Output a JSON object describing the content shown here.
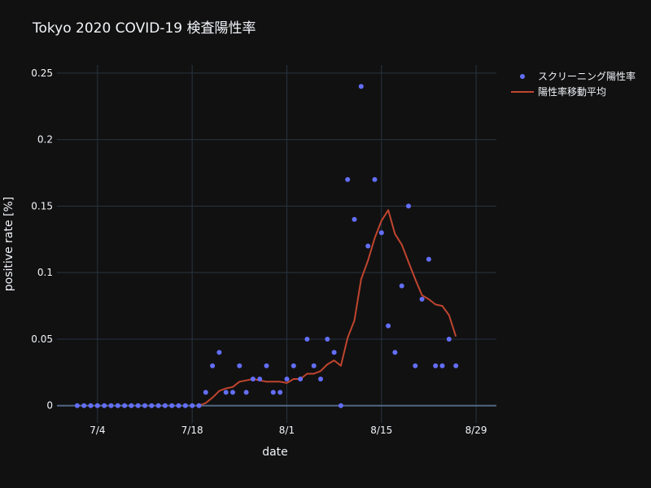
{
  "chart_data": {
    "type": "scatter+line",
    "title": "Tokyo 2020 COVID-19 検査陽性率",
    "xlabel": "date",
    "ylabel": "positive rate [%]",
    "x_ticks": [
      "7/4",
      "7/18",
      "8/1",
      "8/15",
      "8/29"
    ],
    "y_ticks": [
      "0",
      "0.05",
      "0.1",
      "0.15",
      "0.2",
      "0.25"
    ],
    "x_range": [
      "2020-06-28",
      "2020-09-01"
    ],
    "y_range": [
      -0.013,
      0.256
    ],
    "grid": true,
    "legend_position": "top-right",
    "series": [
      {
        "name": "スクリーニング陽性率",
        "mode": "markers",
        "color": "#636efa",
        "x": [
          "2020-07-01",
          "2020-07-02",
          "2020-07-03",
          "2020-07-04",
          "2020-07-05",
          "2020-07-06",
          "2020-07-07",
          "2020-07-08",
          "2020-07-09",
          "2020-07-10",
          "2020-07-11",
          "2020-07-12",
          "2020-07-13",
          "2020-07-14",
          "2020-07-15",
          "2020-07-16",
          "2020-07-17",
          "2020-07-18",
          "2020-07-19",
          "2020-07-20",
          "2020-07-21",
          "2020-07-22",
          "2020-07-23",
          "2020-07-24",
          "2020-07-25",
          "2020-07-26",
          "2020-07-27",
          "2020-07-28",
          "2020-07-29",
          "2020-07-30",
          "2020-07-31",
          "2020-08-01",
          "2020-08-02",
          "2020-08-03",
          "2020-08-04",
          "2020-08-05",
          "2020-08-06",
          "2020-08-07",
          "2020-08-08",
          "2020-08-09",
          "2020-08-10",
          "2020-08-11",
          "2020-08-12",
          "2020-08-13",
          "2020-08-14",
          "2020-08-15",
          "2020-08-16",
          "2020-08-17",
          "2020-08-18",
          "2020-08-19",
          "2020-08-20",
          "2020-08-21",
          "2020-08-22",
          "2020-08-23",
          "2020-08-24",
          "2020-08-25",
          "2020-08-26"
        ],
        "y": [
          0,
          0,
          0,
          0,
          0,
          0,
          0,
          0,
          0,
          0,
          0,
          0,
          0,
          0,
          0,
          0,
          0,
          0,
          0,
          0.01,
          0.03,
          0.04,
          0.01,
          0.01,
          0.03,
          0.01,
          0.02,
          0.02,
          0.03,
          0.01,
          0.01,
          0.02,
          0.03,
          0.02,
          0.05,
          0.03,
          0.02,
          0.05,
          0.04,
          0,
          0.17,
          0.14,
          0.24,
          0.12,
          0.17,
          0.13,
          0.06,
          0.04,
          0.09,
          0.15,
          0.03,
          0.08,
          0.11,
          0.03,
          0.03,
          0.05,
          0.03
        ]
      },
      {
        "name": "陽性率移動平均",
        "mode": "lines",
        "color": "#c0452f",
        "x": [
          "2020-07-19",
          "2020-07-20",
          "2020-07-21",
          "2020-07-22",
          "2020-07-23",
          "2020-07-24",
          "2020-07-25",
          "2020-07-26",
          "2020-07-27",
          "2020-07-28",
          "2020-07-29",
          "2020-07-30",
          "2020-07-31",
          "2020-08-01",
          "2020-08-02",
          "2020-08-03",
          "2020-08-04",
          "2020-08-05",
          "2020-08-06",
          "2020-08-07",
          "2020-08-08",
          "2020-08-09",
          "2020-08-10",
          "2020-08-11",
          "2020-08-12",
          "2020-08-13",
          "2020-08-14",
          "2020-08-15",
          "2020-08-16",
          "2020-08-17",
          "2020-08-18",
          "2020-08-19",
          "2020-08-20",
          "2020-08-21",
          "2020-08-22",
          "2020-08-23",
          "2020-08-24",
          "2020-08-25",
          "2020-08-26"
        ],
        "y": [
          0,
          0.002,
          0.006,
          0.011,
          0.013,
          0.014,
          0.018,
          0.019,
          0.02,
          0.019,
          0.018,
          0.018,
          0.018,
          0.017,
          0.02,
          0.02,
          0.024,
          0.024,
          0.026,
          0.031,
          0.034,
          0.03,
          0.051,
          0.064,
          0.095,
          0.109,
          0.126,
          0.139,
          0.147,
          0.129,
          0.121,
          0.108,
          0.095,
          0.083,
          0.08,
          0.076,
          0.075,
          0.068,
          0.052
        ]
      }
    ]
  }
}
